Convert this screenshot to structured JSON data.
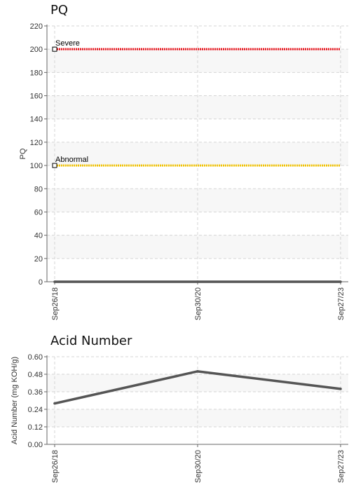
{
  "chart_data": [
    {
      "type": "line",
      "title": "PQ",
      "xlabel": "",
      "ylabel": "PQ",
      "ylim": [
        0,
        220
      ],
      "yticks": [
        0,
        20,
        40,
        60,
        80,
        100,
        120,
        140,
        160,
        180,
        200,
        220
      ],
      "categories": [
        "Sep26/18",
        "Sep30/20",
        "Sep27/23"
      ],
      "series": [
        {
          "values": [
            0,
            0,
            0
          ],
          "color": "#555555"
        }
      ],
      "thresholds": [
        {
          "label": "Severe",
          "value": 200,
          "color": "#e8141c"
        },
        {
          "label": "Abnormal",
          "value": 100,
          "color": "#f2c200"
        }
      ],
      "grid": true
    },
    {
      "type": "line",
      "title": "Acid Number",
      "xlabel": "",
      "ylabel": "Acid Number (mg KOH/g)",
      "ylim": [
        0,
        0.6
      ],
      "yticks": [
        "0.00",
        "0.12",
        "0.24",
        "0.36",
        "0.48",
        "0.60"
      ],
      "categories": [
        "Sep26/18",
        "Sep30/20",
        "Sep27/23"
      ],
      "series": [
        {
          "values": [
            0.28,
            0.5,
            0.38
          ],
          "color": "#555555"
        }
      ],
      "grid": true
    }
  ]
}
